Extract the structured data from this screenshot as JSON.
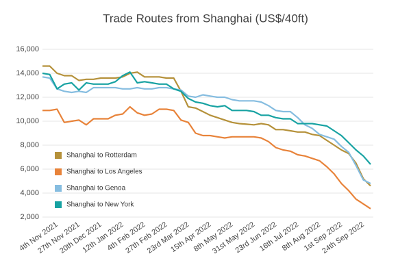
{
  "chart_data": {
    "type": "line",
    "title": "Trade Routes from Shanghai (US$/40ft)",
    "categories": [
      null,
      null,
      "4th Nov 2021",
      null,
      null,
      "27th Nov 2021",
      null,
      null,
      "20th Dec 2021",
      null,
      null,
      "12th Jan 2022",
      null,
      null,
      "4th Feb 2022",
      null,
      null,
      "27th Feb 2022",
      null,
      null,
      "23rd Mar 2022",
      null,
      null,
      "15th Apr 2022",
      null,
      null,
      "8th May 2022",
      null,
      null,
      "31st May 2022",
      null,
      null,
      "23rd Jun 2022",
      null,
      null,
      "16th Jul 2022",
      null,
      null,
      "8th Aug 2022",
      null,
      null,
      "1st Sep 2022",
      null,
      null,
      "24th Sep 2022",
      null
    ],
    "series": [
      {
        "name": "Shanghai to Rotterdam",
        "color": "#b5913a",
        "values": [
          14600,
          14600,
          14000,
          13800,
          13800,
          13400,
          13500,
          13500,
          13600,
          13600,
          13600,
          13700,
          14000,
          14100,
          13700,
          13700,
          13700,
          13600,
          13600,
          12500,
          11200,
          11100,
          10800,
          10500,
          10300,
          10100,
          9900,
          9800,
          9750,
          9700,
          9800,
          9700,
          9300,
          9300,
          9200,
          9100,
          9100,
          8900,
          8800,
          8400,
          8000,
          7600,
          7300,
          6500,
          5200,
          4600
        ]
      },
      {
        "name": "Shanghai to Los Angeles",
        "color": "#e8833a",
        "values": [
          10900,
          10900,
          11000,
          9900,
          10000,
          10100,
          9700,
          10200,
          10200,
          10200,
          10500,
          10600,
          11200,
          10700,
          10500,
          10600,
          11000,
          11000,
          10900,
          10100,
          9900,
          9000,
          8800,
          8800,
          8700,
          8600,
          8700,
          8700,
          8700,
          8700,
          8600,
          8300,
          7800,
          7600,
          7500,
          7200,
          7100,
          6900,
          6700,
          6200,
          5600,
          4800,
          4200,
          3500,
          3100,
          2700
        ]
      },
      {
        "name": "Shanghai to Genoa",
        "color": "#86bde0",
        "values": [
          13700,
          13600,
          12700,
          12500,
          12400,
          12500,
          12400,
          12800,
          12800,
          12800,
          12800,
          12700,
          12700,
          12800,
          12700,
          12700,
          12800,
          12800,
          12700,
          12600,
          12100,
          12000,
          12200,
          12100,
          12000,
          12000,
          11800,
          11700,
          11700,
          11700,
          11600,
          11300,
          10900,
          10800,
          10800,
          10300,
          9700,
          9400,
          8900,
          8700,
          8500,
          7900,
          7400,
          6300,
          5100,
          4800
        ]
      },
      {
        "name": "Shanghai to New York",
        "color": "#17a2a2",
        "values": [
          14000,
          13900,
          12700,
          13100,
          13200,
          12600,
          13200,
          13100,
          13100,
          13100,
          13300,
          13800,
          14100,
          13200,
          13300,
          13200,
          13100,
          13100,
          12700,
          12500,
          11900,
          11600,
          11500,
          11300,
          11200,
          11300,
          10900,
          10900,
          10900,
          10800,
          10500,
          10500,
          10300,
          10200,
          10200,
          9800,
          9800,
          9800,
          9700,
          9600,
          9200,
          8800,
          8200,
          7600,
          7100,
          6400
        ]
      }
    ],
    "ylim": [
      2000,
      16000
    ],
    "yticks": [
      {
        "value": 2000,
        "label": "2,000"
      },
      {
        "value": 4000,
        "label": "4,000"
      },
      {
        "value": 6000,
        "label": "6,000"
      },
      {
        "value": 8000,
        "label": "8,000"
      },
      {
        "value": 10000,
        "label": "10,000"
      },
      {
        "value": 12000,
        "label": "12,000"
      },
      {
        "value": 14000,
        "label": "14,000"
      },
      {
        "value": 16000,
        "label": "16,000"
      }
    ],
    "grid": true,
    "legend_position": "center-left"
  }
}
